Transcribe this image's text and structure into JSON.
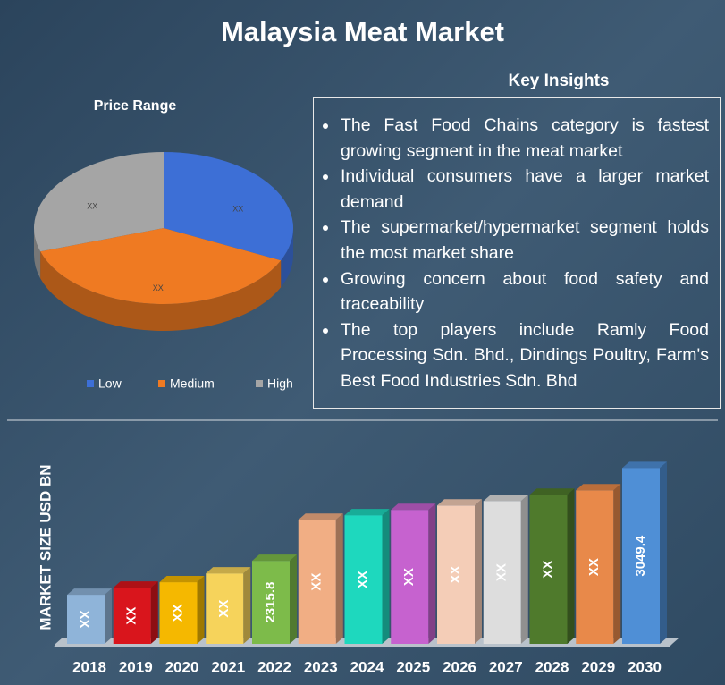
{
  "title": "Malaysia Meat Market",
  "key_insights": {
    "heading": "Key Insights",
    "items": [
      "The Fast Food Chains category is fastest growing segment in the meat market",
      "Individual consumers have a larger market demand",
      "The supermarket/hypermarket segment holds the most market share",
      "Growing concern about food safety and traceability",
      "The top players include Ramly Food Processing Sdn. Bhd., Dindings Poultry, Farm's Best Food Industries Sdn. Bhd"
    ]
  },
  "chart_data": [
    {
      "type": "pie",
      "title": "Price Range",
      "categories": [
        "Low",
        "Medium",
        "High"
      ],
      "values": [
        32,
        38,
        30
      ],
      "value_labels": [
        "XX",
        "XX",
        "XX"
      ],
      "colors": [
        "#3d6fd6",
        "#ef7a22",
        "#a5a5a5"
      ]
    },
    {
      "type": "bar",
      "y_label": "MARKET SIZE USD BN",
      "categories": [
        "2018",
        "2019",
        "2020",
        "2021",
        "2022",
        "2023",
        "2024",
        "2025",
        "2026",
        "2027",
        "2028",
        "2029",
        "2030"
      ],
      "values": [
        2048,
        2104,
        2147,
        2217,
        2315.8,
        2640,
        2676,
        2718,
        2753,
        2788,
        2838,
        2873,
        3049.4
      ],
      "value_labels": [
        "XX",
        "XX",
        "XX",
        "XX",
        "2315.8",
        "XX",
        "XX",
        "XX",
        "XX",
        "XX",
        "XX",
        "XX",
        "3049.4"
      ],
      "colors": [
        "#8fb4d9",
        "#d9151c",
        "#f5b800",
        "#f6d35b",
        "#7dbb4a",
        "#f1ae84",
        "#1ed8be",
        "#c662cf",
        "#f4cdb7",
        "#dddddd",
        "#4f7a2c",
        "#e8894a",
        "#4f8fd6"
      ],
      "ylim": [
        1660,
        3200
      ]
    }
  ]
}
